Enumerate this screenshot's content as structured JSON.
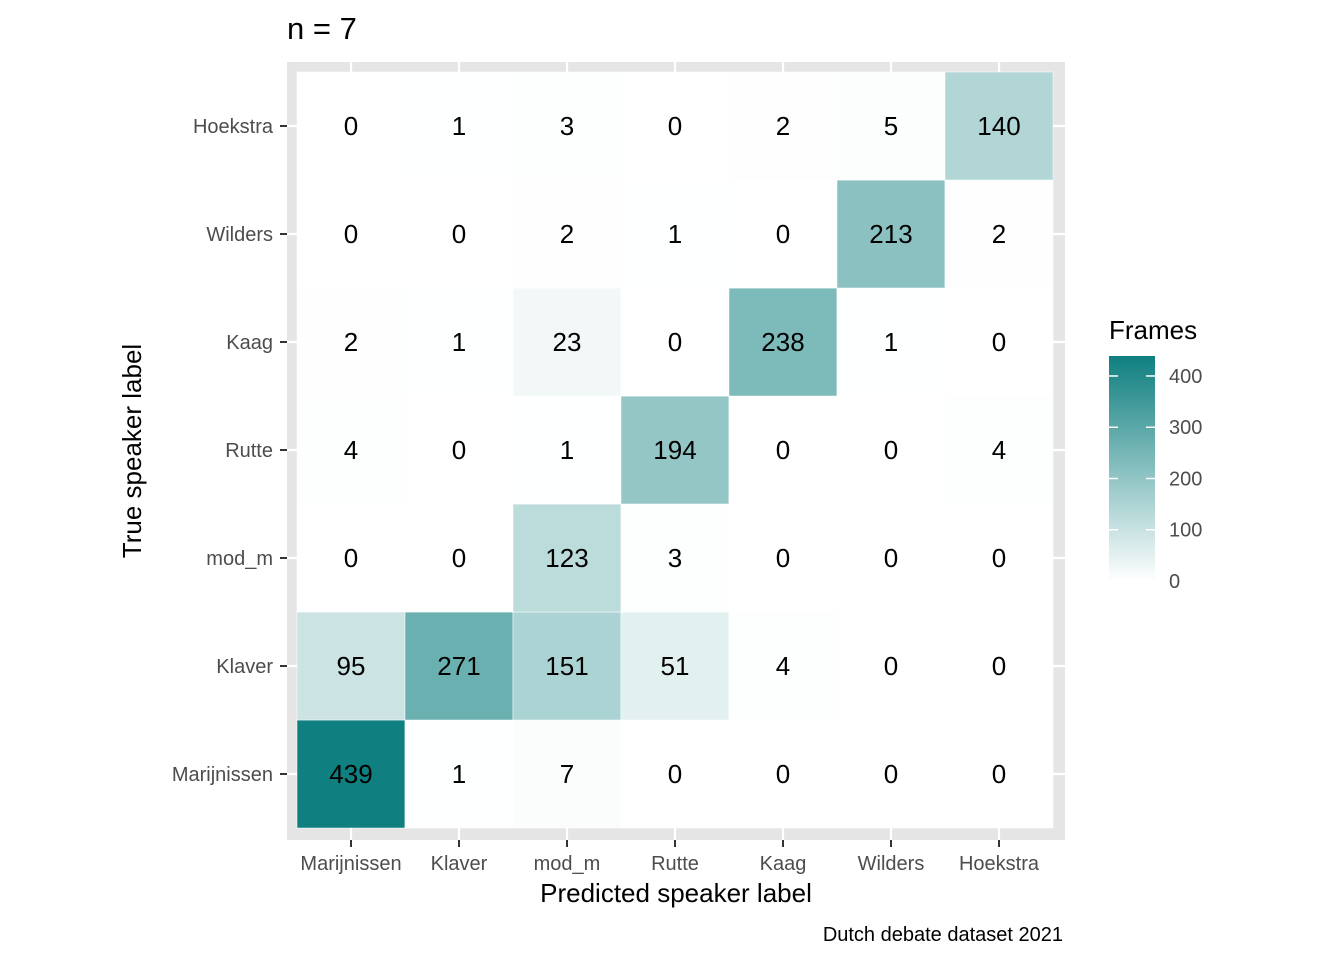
{
  "chart_data": {
    "type": "heatmap",
    "title": "n = 7",
    "xlabel": "Predicted speaker label",
    "ylabel": "True speaker label",
    "caption": "Dutch debate dataset 2021",
    "x_categories": [
      "Marijnissen",
      "Klaver",
      "mod_m",
      "Rutte",
      "Kaag",
      "Wilders",
      "Hoekstra"
    ],
    "y_categories": [
      "Marijnissen",
      "Klaver",
      "mod_m",
      "Rutte",
      "Kaag",
      "Wilders",
      "Hoekstra"
    ],
    "values": [
      [
        439,
        1,
        7,
        0,
        0,
        0,
        0
      ],
      [
        95,
        271,
        151,
        51,
        4,
        0,
        0
      ],
      [
        0,
        0,
        123,
        3,
        0,
        0,
        0
      ],
      [
        4,
        0,
        1,
        194,
        0,
        0,
        4
      ],
      [
        2,
        1,
        23,
        0,
        238,
        1,
        0
      ],
      [
        0,
        0,
        2,
        1,
        0,
        213,
        2
      ],
      [
        0,
        1,
        3,
        0,
        2,
        5,
        140
      ]
    ],
    "legend": {
      "title": "Frames",
      "ticks": [
        0,
        100,
        200,
        300,
        400
      ],
      "range": [
        0,
        439
      ],
      "low_color": "#ffffff",
      "high_color": "#0f7f7f",
      "placement": "right"
    },
    "panel_background": "#e5e5e5",
    "grid": true
  }
}
